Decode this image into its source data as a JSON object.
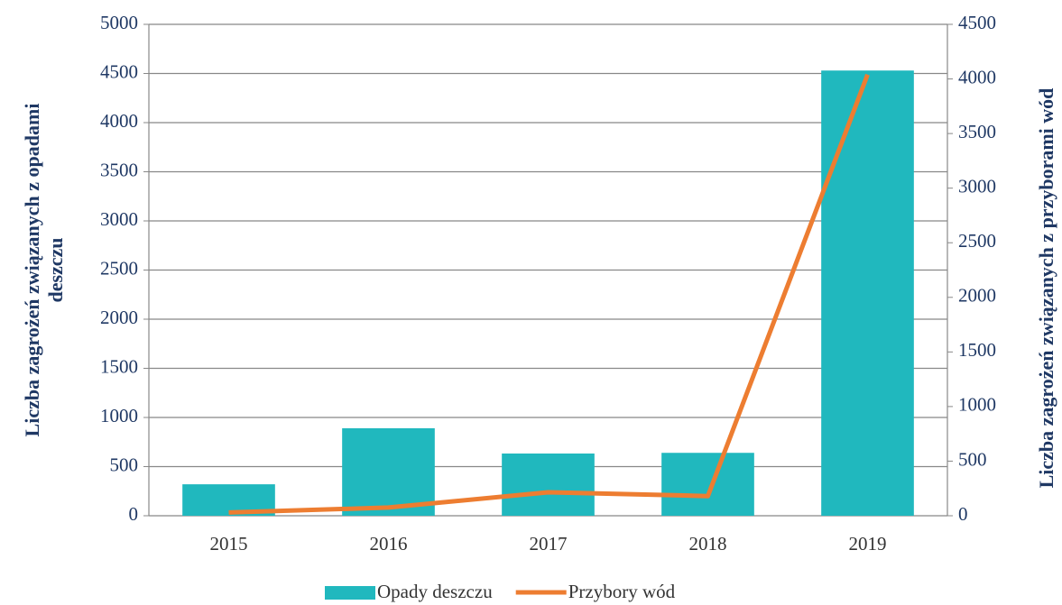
{
  "chart_data": {
    "type": "bar",
    "categories": [
      "2015",
      "2016",
      "2017",
      "2018",
      "2019"
    ],
    "series": [
      {
        "name": "Opady deszczu",
        "type": "bar",
        "color": "#20b8be",
        "values": [
          320,
          890,
          633,
          640,
          4530
        ]
      },
      {
        "name": "Przybory wód",
        "type": "line",
        "axis": "y2",
        "color": "#ed7d31",
        "values": [
          30,
          75,
          215,
          180,
          4040
        ]
      }
    ],
    "y_label": [
      "Liczba zagrożeń związanych z opadami",
      "deszczu"
    ],
    "y2_label": "Liczba zagrożeń związanych z przyborami  wód",
    "ylim": [
      0,
      5000
    ],
    "yticks": [
      0,
      500,
      1000,
      1500,
      2000,
      2500,
      3000,
      3500,
      4000,
      4500,
      5000
    ],
    "y2lim": [
      0,
      4500
    ],
    "y2ticks": [
      0,
      500,
      1000,
      1500,
      2000,
      2500,
      3000,
      3500,
      4000,
      4500
    ],
    "grid": true,
    "legend": "bottom"
  }
}
